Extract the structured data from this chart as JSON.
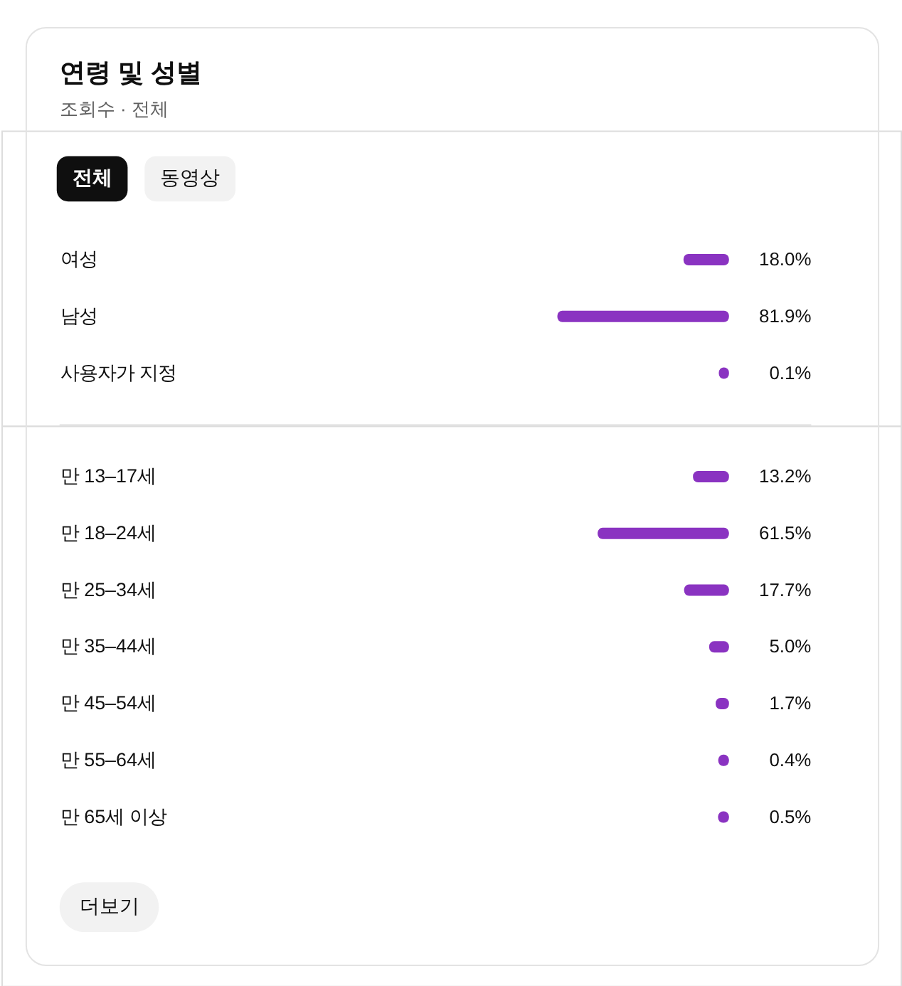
{
  "chart_data": [
    {
      "type": "bar",
      "orientation": "horizontal",
      "title": "연령 및 성별",
      "subtitle": "조회수 · 전체",
      "annotations": [
        "전체",
        "동영상"
      ],
      "categories": [
        "여성",
        "남성",
        "사용자가 지정"
      ],
      "values": [
        18.0,
        81.9,
        0.1
      ],
      "value_labels": [
        "18.0%",
        "81.9%",
        "0.1%"
      ],
      "color": "#8a33c1",
      "tick_labels": "y"
    },
    {
      "type": "bar",
      "orientation": "horizontal",
      "annotations": [
        "더보기"
      ],
      "categories": [
        "만 13–17세",
        "만 18–24세",
        "만 25–34세",
        "만 35–44세",
        "만 45–54세",
        "만 55–64세",
        "만 65세 이상"
      ],
      "values": [
        13.2,
        61.5,
        17.7,
        5.0,
        1.7,
        0.4,
        0.5
      ],
      "value_labels": [
        "13.2%",
        "61.5%",
        "17.7%",
        "5.0%",
        "1.7%",
        "0.4%",
        "0.5%"
      ],
      "color": "#8a33c1",
      "tick_labels": "y"
    }
  ]
}
